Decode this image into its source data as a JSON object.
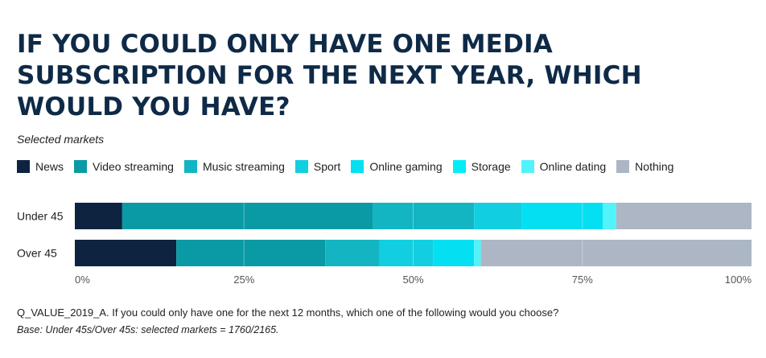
{
  "title": "IF YOU COULD ONLY HAVE ONE MEDIA SUBSCRIPTION FOR THE NEXT YEAR, WHICH WOULD YOU HAVE?",
  "subtitle": "Selected markets",
  "footnote": "Q_VALUE_2019_A. If you could only have one for the next 12 months, which one of the following would you choose?",
  "base": "Base: Under 45s/Over 45s: selected markets = 1760/2165.",
  "chart_data": {
    "type": "bar",
    "orientation": "horizontal",
    "stacked": true,
    "categories": [
      "Under 45",
      "Over 45"
    ],
    "series": [
      {
        "name": "News",
        "color": "#0d2340",
        "values": [
          7,
          15
        ]
      },
      {
        "name": "Video streaming",
        "color": "#0a9aa5",
        "values": [
          37,
          22
        ]
      },
      {
        "name": "Music streaming",
        "color": "#13b5c2",
        "values": [
          15,
          8
        ]
      },
      {
        "name": "Sport",
        "color": "#11cfe0",
        "values": [
          7,
          8
        ]
      },
      {
        "name": "Online gaming",
        "color": "#05dff2",
        "values": [
          12,
          6
        ]
      },
      {
        "name": "Storage",
        "color": "#06ecf7",
        "values": [
          0,
          0
        ]
      },
      {
        "name": "Online dating",
        "color": "#52f3fb",
        "values": [
          2,
          1
        ]
      },
      {
        "name": "Nothing",
        "color": "#acb6c4",
        "values": [
          20,
          40
        ]
      }
    ],
    "xlim": [
      0,
      100
    ],
    "ticks": [
      "0%",
      "25%",
      "50%",
      "75%",
      "100%"
    ],
    "tick_values": [
      0,
      25,
      50,
      75,
      100
    ],
    "legend_position": "top-left",
    "grid": true
  }
}
